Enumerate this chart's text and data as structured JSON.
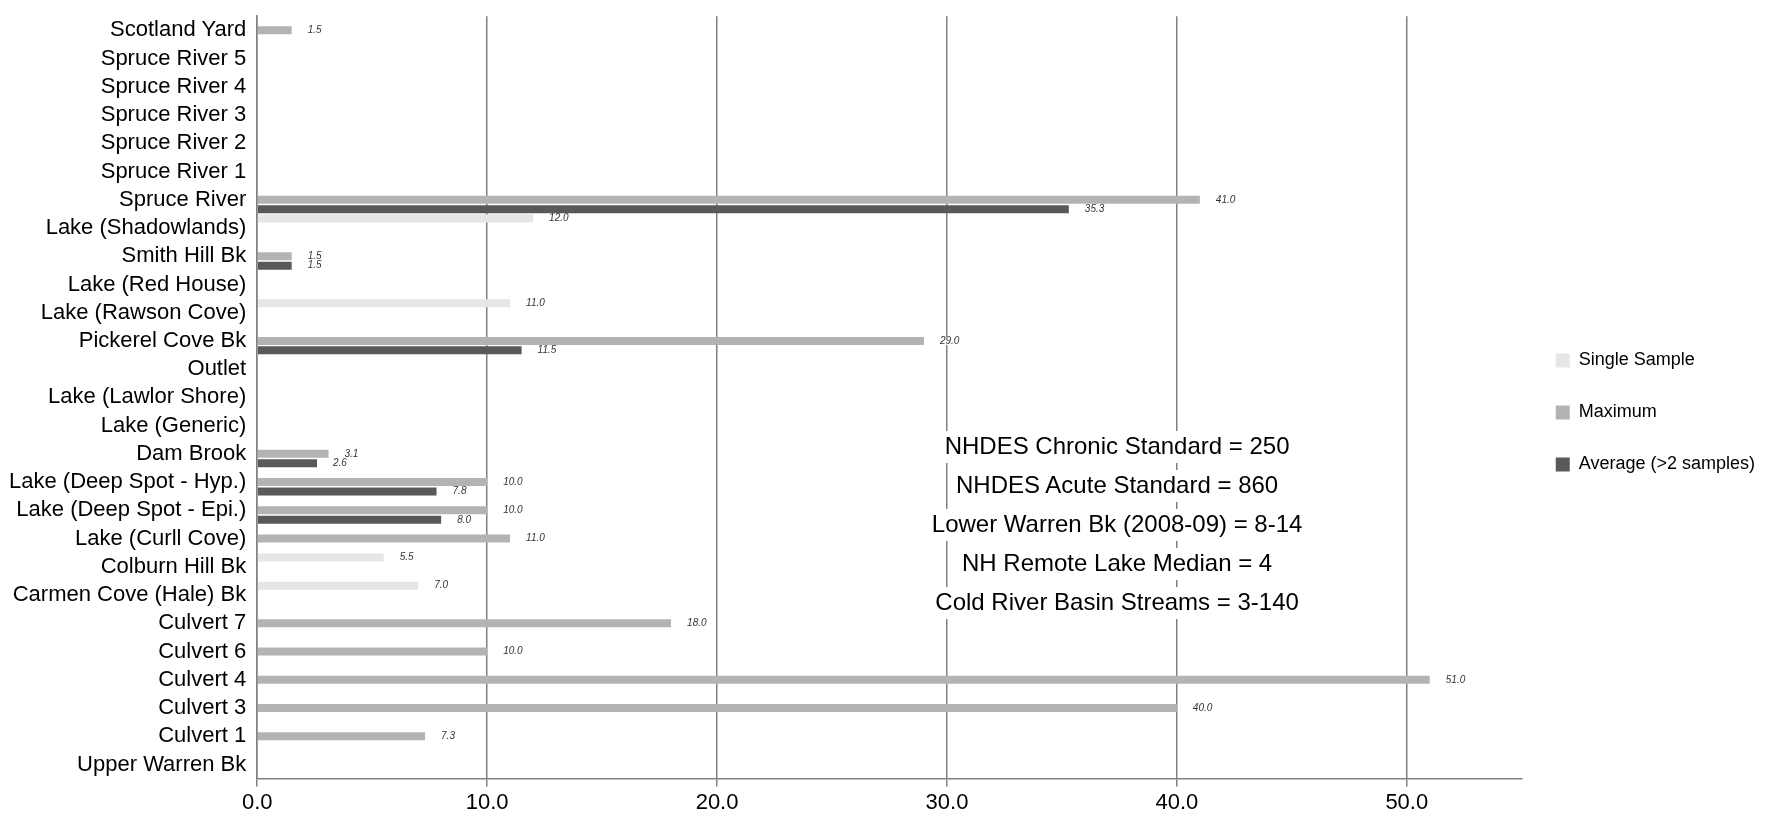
{
  "chart_data": {
    "type": "bar",
    "orientation": "horizontal",
    "categories": [
      "Scotland Yard",
      "Spruce River 5",
      "Spruce River 4",
      "Spruce River 3",
      "Spruce River 2",
      "Spruce River 1",
      "Spruce River",
      "Lake (Shadowlands)",
      "Smith Hill Bk",
      "Lake (Red House)",
      "Lake (Rawson Cove)",
      "Pickerel Cove Bk",
      "Outlet",
      "Lake (Lawlor Shore)",
      "Lake (Generic)",
      "Dam Brook",
      "Lake (Deep Spot - Hyp.)",
      "Lake (Deep Spot - Epi.)",
      "Lake (Curll Cove)",
      "Colburn Hill Bk",
      "Carmen Cove (Hale) Bk",
      "Culvert 7",
      "Culvert 6",
      "Culvert 4",
      "Culvert 3",
      "Culvert 1",
      "Upper Warren Bk"
    ],
    "series": [
      {
        "name": "Single Sample",
        "color": "#e6e6e6",
        "values": [
          null,
          null,
          null,
          null,
          null,
          null,
          null,
          12.0,
          null,
          null,
          11.0,
          null,
          null,
          null,
          null,
          null,
          null,
          null,
          null,
          5.5,
          7.0,
          null,
          null,
          null,
          null,
          null,
          null
        ],
        "value_labels": [
          null,
          null,
          null,
          null,
          null,
          null,
          null,
          "12.0",
          null,
          null,
          "11.0",
          null,
          null,
          null,
          null,
          null,
          null,
          null,
          null,
          "5.5",
          "7.0",
          null,
          null,
          null,
          null,
          null,
          null
        ]
      },
      {
        "name": "Maximum",
        "color": "#b3b3b3",
        "values": [
          1.5,
          null,
          null,
          null,
          null,
          null,
          41.0,
          null,
          1.5,
          null,
          null,
          29.0,
          null,
          null,
          null,
          3.1,
          10.0,
          10.0,
          11.0,
          null,
          null,
          18.0,
          10.0,
          51.0,
          40.0,
          7.3,
          null
        ],
        "value_labels": [
          "1.5",
          null,
          null,
          null,
          null,
          null,
          "41.0",
          null,
          "1.5",
          null,
          null,
          "29.0",
          null,
          null,
          null,
          "3.1",
          "10.0",
          "10.0",
          "11.0",
          null,
          null,
          "18.0",
          "10.0",
          "51.0",
          "40.0",
          "7.3",
          null
        ]
      },
      {
        "name": "Average (>2 samples)",
        "color": "#595959",
        "values": [
          null,
          null,
          null,
          null,
          null,
          null,
          35.3,
          null,
          1.5,
          null,
          null,
          11.5,
          null,
          null,
          null,
          2.6,
          7.8,
          8.0,
          null,
          null,
          null,
          null,
          null,
          null,
          null,
          null,
          null
        ],
        "value_labels": [
          null,
          null,
          null,
          null,
          null,
          null,
          "35.3",
          null,
          "1.5",
          null,
          null,
          "11.5",
          null,
          null,
          null,
          "2.6",
          "7.8",
          "8.0",
          null,
          null,
          null,
          null,
          null,
          null,
          null,
          null,
          null
        ]
      }
    ],
    "xlim": [
      0,
      55
    ],
    "xticks": [
      {
        "value": 0,
        "label": "0.0"
      },
      {
        "value": 10,
        "label": "10.0"
      },
      {
        "value": 20,
        "label": "20.0"
      },
      {
        "value": 30,
        "label": "30.0"
      },
      {
        "value": 40,
        "label": "40.0"
      },
      {
        "value": 50,
        "label": "50.0"
      }
    ],
    "grid": "x",
    "legend": "right",
    "annotations": [
      "NHDES Chronic Standard = 250",
      "NHDES Acute Standard = 860",
      "Lower Warren Bk (2008-09) = 8-14",
      "NH Remote Lake Median = 4",
      "Cold River Basin Streams = 3-140"
    ]
  }
}
